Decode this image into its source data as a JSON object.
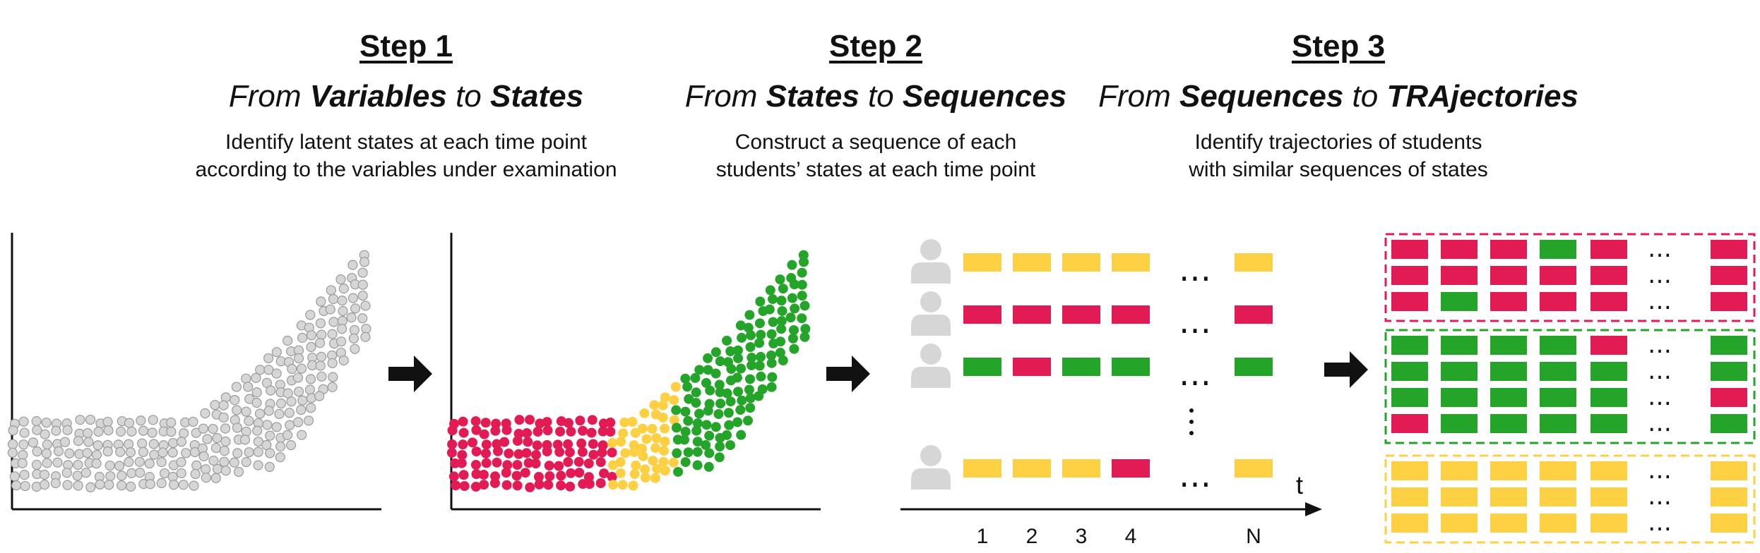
{
  "steps": [
    {
      "title": "Step 1",
      "sub": [
        "From ",
        "Variables",
        " to ",
        "States"
      ],
      "desc1": "Identify latent states at each time point",
      "desc2": "according to the variables under examination"
    },
    {
      "title": "Step 2",
      "sub": [
        "From ",
        "States",
        " to ",
        "Sequences"
      ],
      "desc1": "Construct a sequence of each",
      "desc2": "students’ states at each time point"
    },
    {
      "title": "Step 3",
      "sub": [
        "From ",
        "Sequences",
        " to ",
        "TRAjectories"
      ],
      "desc1": "Identify trajectories of students",
      "desc2": "with similar sequences of states"
    }
  ],
  "colors": {
    "red": "#e31b55",
    "yellow": "#fdd043",
    "green": "#24a52a",
    "gray": "#d6d6d6"
  },
  "sequences": {
    "rows": [
      [
        "yellow",
        "yellow",
        "yellow",
        "yellow",
        "yellow"
      ],
      [
        "red",
        "red",
        "red",
        "red",
        "red"
      ],
      [
        "green",
        "red",
        "green",
        "green",
        "green"
      ],
      [
        "yellow",
        "yellow",
        "yellow",
        "red",
        "yellow"
      ]
    ],
    "ellipsis": "…",
    "time_labels": [
      "1",
      "2",
      "3",
      "4",
      "N"
    ],
    "axis_label": "t"
  },
  "trajectories": [
    {
      "color": "red",
      "rows": [
        [
          "red",
          "red",
          "red",
          "green",
          "red",
          "red"
        ],
        [
          "red",
          "red",
          "red",
          "red",
          "red",
          "red"
        ],
        [
          "red",
          "green",
          "red",
          "red",
          "red",
          "red"
        ]
      ]
    },
    {
      "color": "green",
      "rows": [
        [
          "green",
          "green",
          "green",
          "green",
          "red",
          "green"
        ],
        [
          "green",
          "green",
          "green",
          "green",
          "green",
          "green"
        ],
        [
          "green",
          "green",
          "green",
          "green",
          "green",
          "red"
        ],
        [
          "red",
          "green",
          "green",
          "green",
          "green",
          "green"
        ]
      ]
    },
    {
      "color": "yellow",
      "rows": [
        [
          "yellow",
          "yellow",
          "yellow",
          "yellow",
          "yellow",
          "yellow"
        ],
        [
          "yellow",
          "yellow",
          "yellow",
          "yellow",
          "yellow",
          "yellow"
        ],
        [
          "yellow",
          "yellow",
          "yellow",
          "yellow",
          "yellow",
          "yellow"
        ]
      ]
    }
  ]
}
